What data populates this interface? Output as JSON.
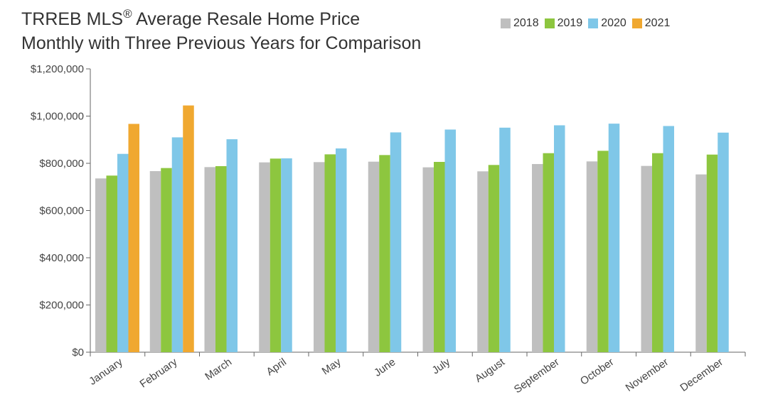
{
  "title_main": "TRREB MLS",
  "title_reg": "®",
  "title_rest": " Average Resale Home Price",
  "subtitle": "Monthly with Three Previous Years for Comparison",
  "chart_data": {
    "type": "bar",
    "title": "TRREB MLS® Average Resale Home Price",
    "subtitle": "Monthly with Three Previous Years for Comparison",
    "xlabel": "",
    "ylabel": "",
    "ylim": [
      0,
      1200000
    ],
    "yticks": [
      0,
      200000,
      400000,
      600000,
      800000,
      1000000,
      1200000
    ],
    "ytick_labels": [
      "$0",
      "$200,000",
      "$400,000",
      "$600,000",
      "$800,000",
      "$1,000,000",
      "$1,200,000"
    ],
    "grid": false,
    "legend_position": "top-right",
    "categories": [
      "January",
      "February",
      "March",
      "April",
      "May",
      "June",
      "July",
      "August",
      "September",
      "October",
      "November",
      "December"
    ],
    "series": [
      {
        "name": "2018",
        "color": "#bfbfbf",
        "values": [
          736000,
          767000,
          784000,
          804000,
          805000,
          807000,
          783000,
          766000,
          797000,
          808000,
          789000,
          753000
        ]
      },
      {
        "name": "2019",
        "color": "#8dc63f",
        "values": [
          748000,
          780000,
          788000,
          820000,
          838000,
          835000,
          806000,
          793000,
          843000,
          853000,
          843000,
          837000
        ]
      },
      {
        "name": "2020",
        "color": "#7fc7e8",
        "values": [
          840000,
          910000,
          902000,
          821000,
          863000,
          931000,
          943000,
          951000,
          961000,
          968000,
          958000,
          930000
        ]
      },
      {
        "name": "2021",
        "color": "#f0a830",
        "values": [
          967000,
          1045000,
          null,
          null,
          null,
          null,
          null,
          null,
          null,
          null,
          null,
          null
        ]
      }
    ]
  }
}
